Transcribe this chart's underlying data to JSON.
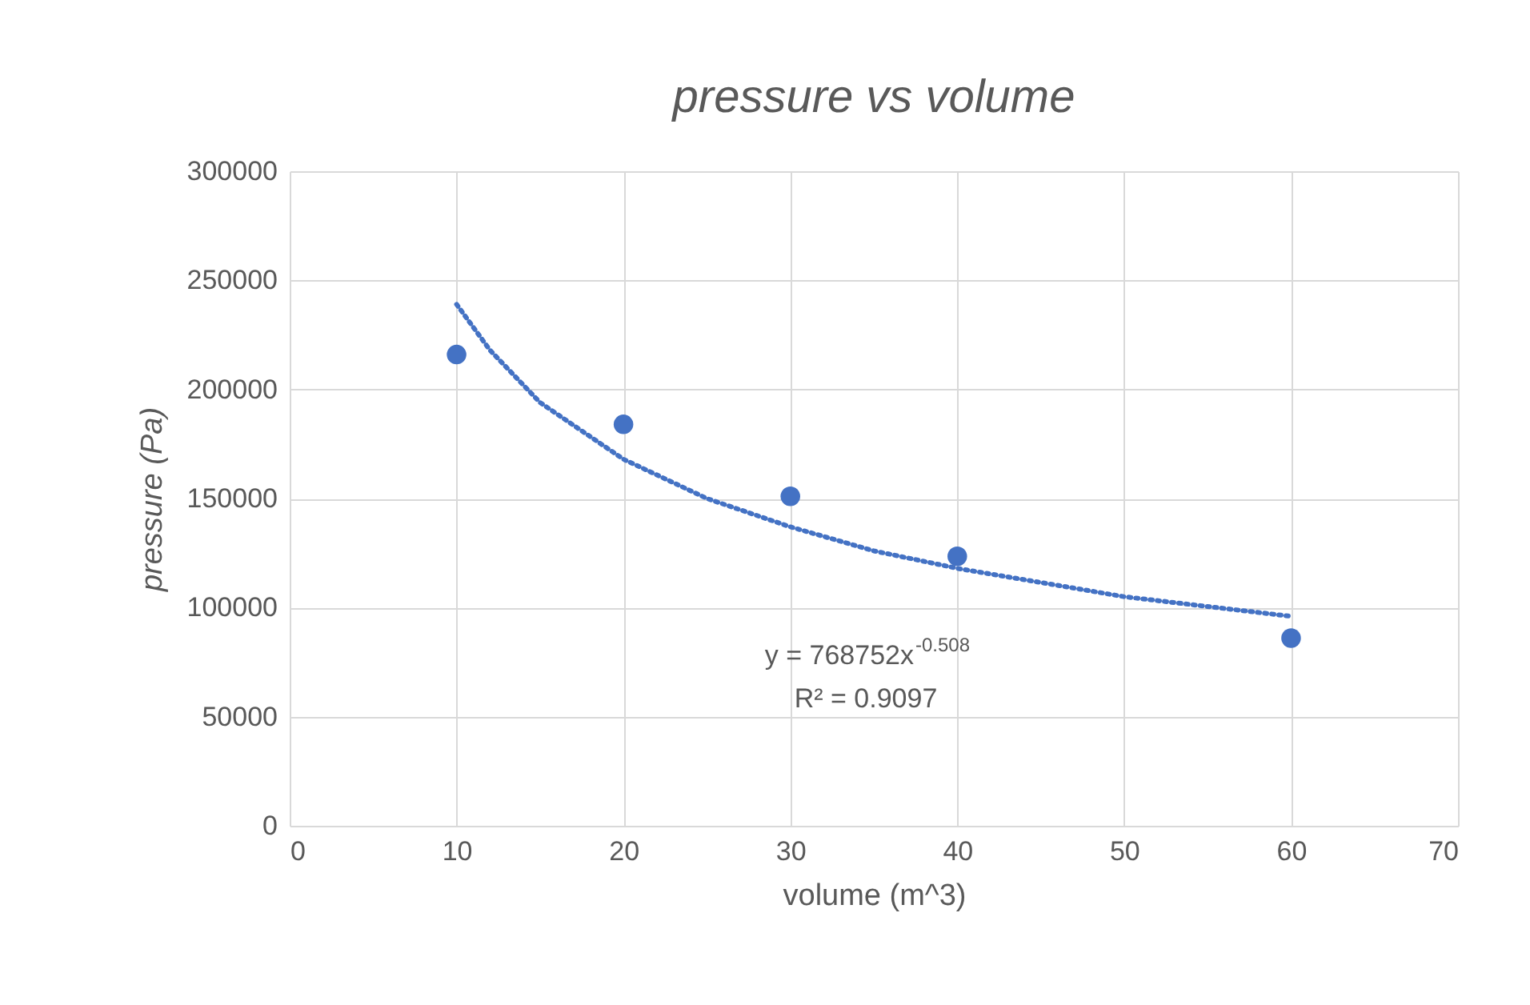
{
  "chart_data": {
    "type": "scatter",
    "title": "pressure vs volume",
    "xlabel": "volume (m^3)",
    "ylabel": "pressure (Pa)",
    "series": [
      {
        "type": "scatter",
        "color": "#4472c4",
        "x": [
          10,
          20,
          30,
          40,
          60
        ],
        "values": [
          216000,
          184000,
          151000,
          123500,
          86000
        ]
      },
      {
        "type": "line",
        "color": "#4472c4",
        "line_style": "dotted",
        "marker": "none",
        "x": [
          10,
          12,
          15,
          20,
          25,
          30,
          35,
          40,
          50,
          60
        ],
        "values": [
          239000,
          218000,
          194000,
          168000,
          150000,
          137000,
          126000,
          118000,
          105000,
          96000
        ]
      }
    ],
    "xlim": [
      0,
      70
    ],
    "xticks": [
      0,
      10,
      20,
      30,
      40,
      50,
      60,
      70
    ],
    "ylim": [
      0,
      300000
    ],
    "yticks": [
      0,
      50000,
      100000,
      150000,
      200000,
      250000,
      300000
    ],
    "grid": true,
    "marker": "circle",
    "annotations": [
      "y = 768752x$^{-0.508}$",
      "R² = 0.9097"
    ]
  }
}
